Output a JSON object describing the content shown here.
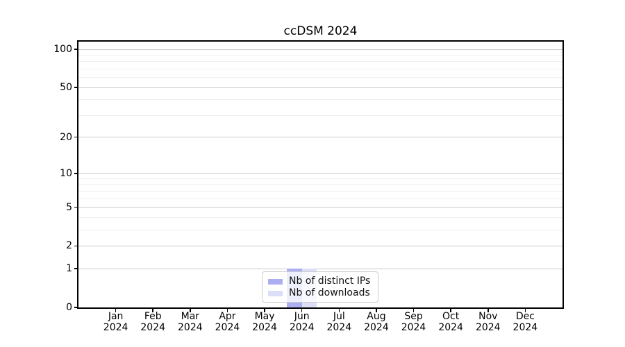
{
  "chart_data": {
    "type": "bar",
    "title": "ccDSM 2024",
    "x_tick_months": [
      "Jan",
      "Feb",
      "Mar",
      "Apr",
      "May",
      "Jun",
      "Jul",
      "Aug",
      "Sep",
      "Oct",
      "Nov",
      "Dec"
    ],
    "x_tick_year": "2024",
    "y_scale": "log1p",
    "y_major_ticks": [
      0,
      1,
      2,
      5,
      10,
      20,
      50,
      100
    ],
    "y_minor_ticks": [
      3,
      4,
      6,
      7,
      8,
      9,
      30,
      40,
      60,
      70,
      80,
      90
    ],
    "ylim": [
      0,
      115
    ],
    "grid": "horizontal major and minor gridlines",
    "legend_position": "lower center",
    "series": [
      {
        "name": "Nb of distinct IPs",
        "color": "#abaff2",
        "values": [
          0,
          0,
          0,
          0,
          0,
          1,
          0,
          0,
          0,
          0,
          0,
          0
        ]
      },
      {
        "name": "Nb of downloads",
        "color": "#dcdef8",
        "values": [
          0,
          0,
          0,
          0,
          0,
          1,
          0,
          0,
          0,
          0,
          0,
          0
        ]
      }
    ]
  },
  "colors": {
    "background": "#ffffff",
    "text": "#000000",
    "spine": "#000000",
    "grid_major": "#c9c9c9",
    "grid_minor": "#efefef",
    "legend_border": "#cccccc"
  }
}
